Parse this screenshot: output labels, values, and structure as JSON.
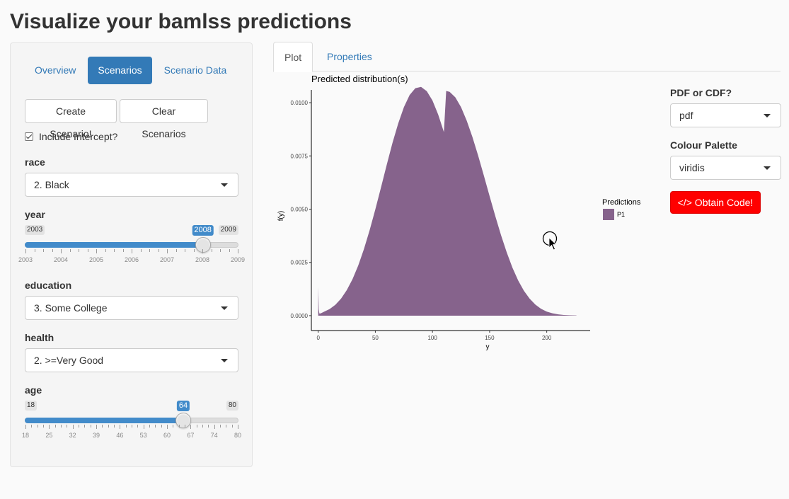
{
  "page": {
    "title": "Visualize your bamlss predictions"
  },
  "sidebar": {
    "tabs": [
      {
        "label": "Overview",
        "active": false
      },
      {
        "label": "Scenarios",
        "active": true
      },
      {
        "label": "Scenario Data",
        "active": false
      }
    ],
    "create_button": "Create Scenario!",
    "clear_button": "Clear Scenarios",
    "intercept": {
      "label": "Include Intercept?",
      "checked": true
    },
    "race": {
      "label": "race",
      "value": "2. Black"
    },
    "year": {
      "label": "year",
      "min": "2003",
      "max": "2009",
      "value": "2008",
      "fraction": 0.8333,
      "ticks": [
        "2003",
        "2004",
        "2005",
        "2006",
        "2007",
        "2008",
        "2009"
      ]
    },
    "education": {
      "label": "education",
      "value": "3. Some College"
    },
    "health": {
      "label": "health",
      "value": "2. >=Very Good"
    },
    "age": {
      "label": "age",
      "min": "18",
      "max": "80",
      "value": "64",
      "fraction": 0.7419,
      "ticks": [
        "18",
        "25",
        "32",
        "39",
        "46",
        "53",
        "60",
        "67",
        "74",
        "80"
      ]
    }
  },
  "main": {
    "tabs": [
      {
        "label": "Plot",
        "active": true
      },
      {
        "label": "Properties",
        "active": false
      }
    ]
  },
  "controls": {
    "pdf_cdf": {
      "label": "PDF or CDF?",
      "value": "pdf"
    },
    "palette": {
      "label": "Colour Palette",
      "value": "viridis"
    },
    "code_button": "</> Obtain Code!",
    "accent_color": "#ff0000"
  },
  "chart_data": {
    "type": "area",
    "title": "Predicted distribution(s)",
    "xlabel": "y",
    "ylabel": "f(y)",
    "xlim": [
      -6,
      238
    ],
    "ylim": [
      -0.0007,
      0.0106
    ],
    "x_ticks": [
      "0",
      "50",
      "100",
      "150",
      "200"
    ],
    "y_ticks": [
      "0.0000",
      "0.0025",
      "0.0050",
      "0.0075",
      "0.0100"
    ],
    "legend": {
      "title": "Predictions",
      "position": "right"
    },
    "series": [
      {
        "name": "P1",
        "color": "#86638c",
        "x": [
          0,
          0.5,
          1,
          2,
          5,
          10,
          15,
          20,
          25,
          30,
          35,
          40,
          45,
          50,
          55,
          60,
          65,
          70,
          75,
          80,
          85,
          90,
          95,
          100,
          105,
          110,
          112,
          115,
          120,
          125,
          130,
          135,
          140,
          145,
          150,
          155,
          160,
          165,
          170,
          175,
          180,
          185,
          190,
          195,
          200,
          205,
          210,
          215,
          220,
          226
        ],
        "y": [
          0.00135,
          0.0003,
          0.0001,
          0.0001,
          0.00018,
          0.00031,
          0.00051,
          0.0008,
          0.0012,
          0.00171,
          0.00235,
          0.00312,
          0.00401,
          0.00499,
          0.00603,
          0.00709,
          0.00811,
          0.00902,
          0.00979,
          0.01036,
          0.01068,
          0.01074,
          0.01054,
          0.0101,
          0.00944,
          0.00862,
          0.01055,
          0.01051,
          0.01025,
          0.00979,
          0.00915,
          0.00838,
          0.00751,
          0.00657,
          0.00561,
          0.00467,
          0.00378,
          0.00297,
          0.00225,
          0.00165,
          0.00117,
          0.0008,
          0.00052,
          0.00032,
          0.00019,
          0.00011,
          6e-05,
          3e-05,
          2e-05,
          1e-05
        ]
      }
    ]
  }
}
